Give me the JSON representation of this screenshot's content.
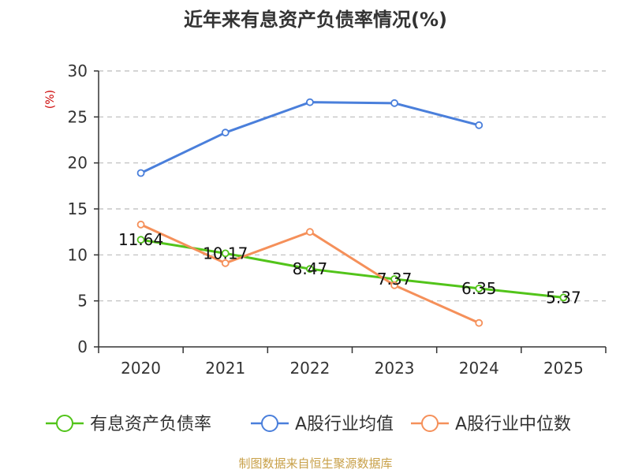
{
  "chart_data": {
    "type": "line",
    "title": "近年来有息资产负债率情况(%)",
    "xlabel": "",
    "ylabel": "(%)",
    "categories": [
      "2020",
      "2021",
      "2022",
      "2023",
      "2024",
      "2025"
    ],
    "ylim": [
      0,
      30
    ],
    "yticks": [
      0,
      5,
      10,
      15,
      20,
      25,
      30
    ],
    "grid": true,
    "legend_position": "bottom",
    "series": [
      {
        "name": "有息资产负债率",
        "color": "#52c41a",
        "values": [
          11.64,
          10.17,
          8.47,
          7.37,
          6.35,
          5.37
        ],
        "labels": [
          "11.64",
          "10.17",
          "8.47",
          "7.37",
          "6.35",
          "5.37"
        ]
      },
      {
        "name": "A股行业均值",
        "color": "#4a7fdb",
        "values": [
          18.9,
          23.3,
          26.6,
          26.5,
          24.1,
          null
        ]
      },
      {
        "name": "A股行业中位数",
        "color": "#f5905a",
        "values": [
          13.3,
          9.1,
          12.5,
          6.7,
          2.6,
          null
        ]
      }
    ],
    "source": "制图数据来自恒生聚源数据库",
    "colors": {
      "ylabel": "#cc0000",
      "source": "#c8a048",
      "grid": "#bbbbbb",
      "axis": "#333333"
    }
  }
}
